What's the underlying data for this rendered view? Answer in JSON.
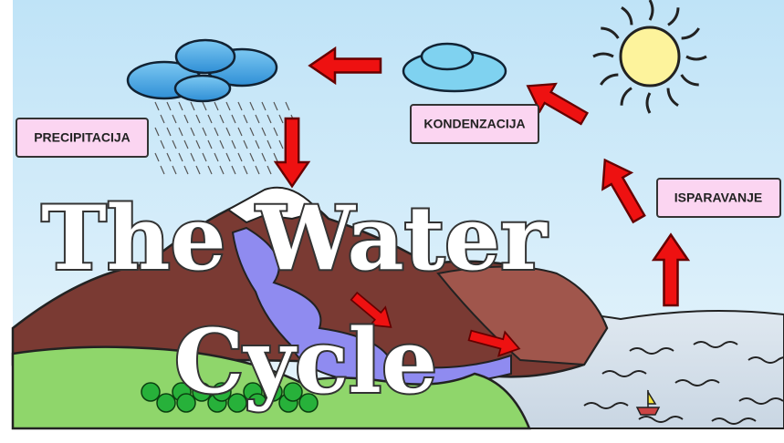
{
  "title_lines": [
    "The Water",
    "Cycle"
  ],
  "labels": {
    "precipitation": "PRECIPITACIJA",
    "condensation": "KONDENZACIJA",
    "evaporation": "ISPARAVANJE"
  }
}
